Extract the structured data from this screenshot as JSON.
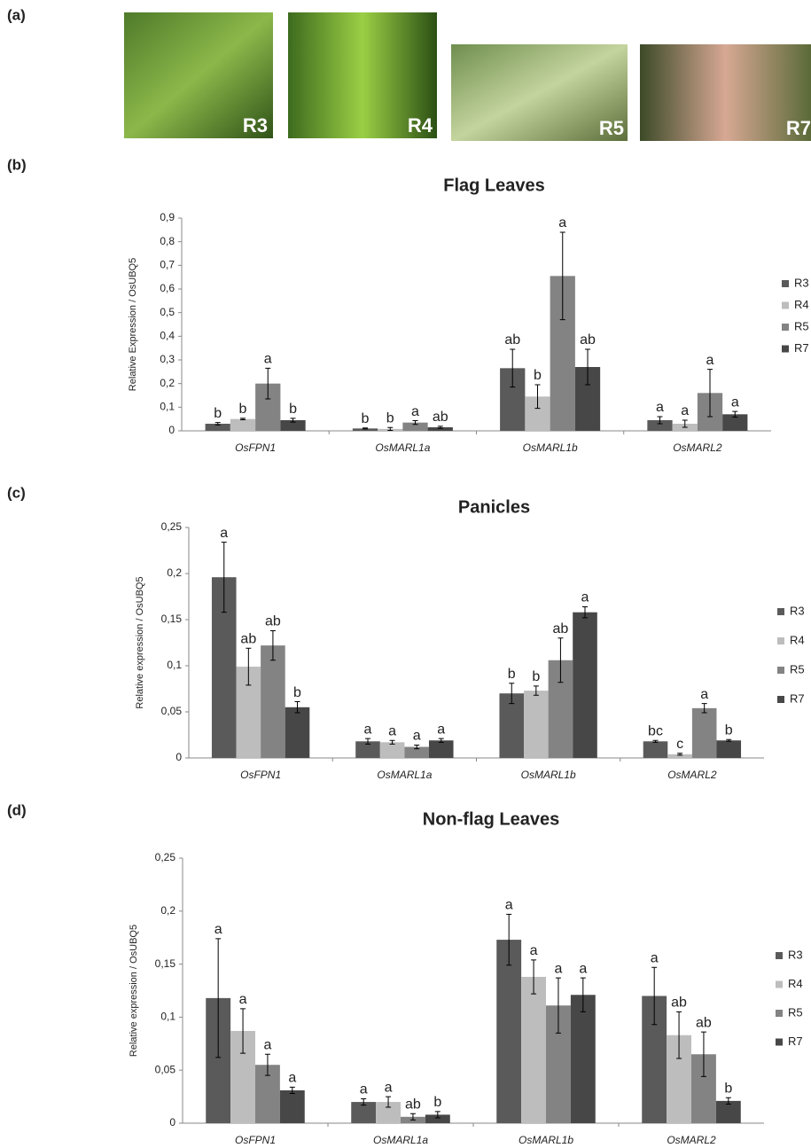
{
  "panel_labels": [
    "(a)",
    "(b)",
    "(c)",
    "(d)"
  ],
  "photo_labels": [
    "R3",
    "R4",
    "R5",
    "R7"
  ],
  "chart_data": [
    {
      "type": "bar",
      "title": "Flag Leaves",
      "y_label": "Relative Expression / OsUBQ5",
      "categories": [
        "OsFPN1",
        "OsMARL1a",
        "OsMARL1b",
        "OsMARL2"
      ],
      "ylim": [
        0,
        0.9
      ],
      "yticks": [
        0,
        {
          "value": 0.1,
          "label": "0,1"
        },
        {
          "value": 0.2,
          "label": "0,2"
        },
        {
          "value": 0.3,
          "label": "0,3"
        },
        {
          "value": 0.4,
          "label": "0,4"
        },
        {
          "value": 0.5,
          "label": "0,5"
        },
        {
          "value": 0.6,
          "label": "0,6"
        },
        {
          "value": 0.7,
          "label": "0,7"
        },
        {
          "value": 0.8,
          "label": "0,8"
        },
        {
          "value": 0.9,
          "label": "0,9"
        }
      ],
      "grid": false,
      "legend": "right",
      "series": [
        {
          "name": "R3",
          "color": "#5a5a5a",
          "values": [
            0.03,
            0.01,
            0.265,
            0.045
          ],
          "errors": [
            0.005,
            0.002,
            0.08,
            0.015
          ],
          "letters": [
            "b",
            "b",
            "ab",
            "a"
          ]
        },
        {
          "name": "R4",
          "color": "#bdbdbd",
          "values": [
            0.05,
            0.008,
            0.145,
            0.03
          ],
          "errors": [
            0.003,
            0.006,
            0.05,
            0.015
          ],
          "letters": [
            "b",
            "b",
            "b",
            "a"
          ]
        },
        {
          "name": "R5",
          "color": "#838383",
          "values": [
            0.2,
            0.035,
            0.655,
            0.16
          ],
          "errors": [
            0.065,
            0.008,
            0.185,
            0.1
          ],
          "letters": [
            "a",
            "a",
            "a",
            "a"
          ]
        },
        {
          "name": "R7",
          "color": "#474747",
          "values": [
            0.045,
            0.015,
            0.27,
            0.07
          ],
          "errors": [
            0.008,
            0.004,
            0.075,
            0.012
          ],
          "letters": [
            "b",
            "ab",
            "ab",
            "a"
          ]
        }
      ]
    },
    {
      "type": "bar",
      "title": "Panicles",
      "y_label": "Relative expression / OsUBQ5",
      "categories": [
        "OsFPN1",
        "OsMARL1a",
        "OsMARL1b",
        "OsMARL2"
      ],
      "ylim": [
        0,
        0.25
      ],
      "yticks": [
        0,
        {
          "value": 0.05,
          "label": "0,05"
        },
        {
          "value": 0.1,
          "label": "0,1"
        },
        {
          "value": 0.15,
          "label": "0,15"
        },
        {
          "value": 0.2,
          "label": "0,2"
        },
        {
          "value": 0.25,
          "label": "0,25"
        }
      ],
      "grid": false,
      "legend": "right",
      "series": [
        {
          "name": "R3",
          "color": "#5a5a5a",
          "values": [
            0.196,
            0.018,
            0.07,
            0.018
          ],
          "errors": [
            0.038,
            0.003,
            0.011,
            0.001
          ],
          "letters": [
            "a",
            "a",
            "b",
            "bc"
          ]
        },
        {
          "name": "R4",
          "color": "#bdbdbd",
          "values": [
            0.099,
            0.017,
            0.073,
            0.004
          ],
          "errors": [
            0.02,
            0.002,
            0.005,
            0.001
          ],
          "letters": [
            "ab",
            "a",
            "b",
            "c"
          ]
        },
        {
          "name": "R5",
          "color": "#838383",
          "values": [
            0.122,
            0.012,
            0.106,
            0.054
          ],
          "errors": [
            0.016,
            0.002,
            0.024,
            0.005
          ],
          "letters": [
            "ab",
            "a",
            "ab",
            "a"
          ]
        },
        {
          "name": "R7",
          "color": "#474747",
          "values": [
            0.055,
            0.019,
            0.158,
            0.019
          ],
          "errors": [
            0.006,
            0.002,
            0.006,
            0.001
          ],
          "letters": [
            "b",
            "a",
            "a",
            "b"
          ]
        }
      ]
    },
    {
      "type": "bar",
      "title": "Non-flag Leaves",
      "y_label": "Relative expression / OsUBQ5",
      "categories": [
        "OsFPN1",
        "OsMARL1a",
        "OsMARL1b",
        "OsMARL2"
      ],
      "ylim": [
        0,
        0.25
      ],
      "yticks": [
        0,
        {
          "value": 0.05,
          "label": "0,05"
        },
        {
          "value": 0.1,
          "label": "0,1"
        },
        {
          "value": 0.15,
          "label": "0,15"
        },
        {
          "value": 0.2,
          "label": "0,2"
        },
        {
          "value": 0.25,
          "label": "0,25"
        }
      ],
      "grid": false,
      "legend": "right",
      "series": [
        {
          "name": "R3",
          "color": "#5a5a5a",
          "values": [
            0.118,
            0.02,
            0.173,
            0.12
          ],
          "errors": [
            0.056,
            0.003,
            0.024,
            0.027
          ],
          "letters": [
            "a",
            "a",
            "a",
            "a"
          ]
        },
        {
          "name": "R4",
          "color": "#bdbdbd",
          "values": [
            0.087,
            0.02,
            0.138,
            0.083
          ],
          "errors": [
            0.021,
            0.005,
            0.016,
            0.022
          ],
          "letters": [
            "a",
            "a",
            "a",
            "ab"
          ]
        },
        {
          "name": "R5",
          "color": "#838383",
          "values": [
            0.055,
            0.006,
            0.111,
            0.065
          ],
          "errors": [
            0.01,
            0.003,
            0.026,
            0.021
          ],
          "letters": [
            "a",
            "ab",
            "a",
            "ab"
          ]
        },
        {
          "name": "R7",
          "color": "#474747",
          "values": [
            0.031,
            0.008,
            0.121,
            0.021
          ],
          "errors": [
            0.003,
            0.003,
            0.016,
            0.003
          ],
          "letters": [
            "a",
            "b",
            "a",
            "b"
          ]
        }
      ]
    }
  ]
}
